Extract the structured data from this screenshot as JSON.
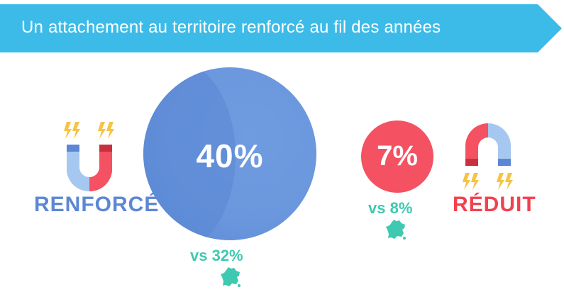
{
  "banner": {
    "title": "Un attachement au territoire renforcé au fil des années",
    "color": "#3dbbe8"
  },
  "renforce": {
    "label": "RENFORCÉ",
    "value": "40%",
    "comparison": "vs 32%",
    "color": "#5b87d4"
  },
  "reduit": {
    "label": "RÉDUIT",
    "value": "7%",
    "comparison": "vs 8%",
    "color": "#f1414f"
  },
  "comparison_color": "#3fc9b0",
  "icons": {
    "magnet_up": "magnet-icon",
    "magnet_down": "magnet-icon",
    "france": "france-map-icon",
    "spark": "lightning-icon"
  }
}
